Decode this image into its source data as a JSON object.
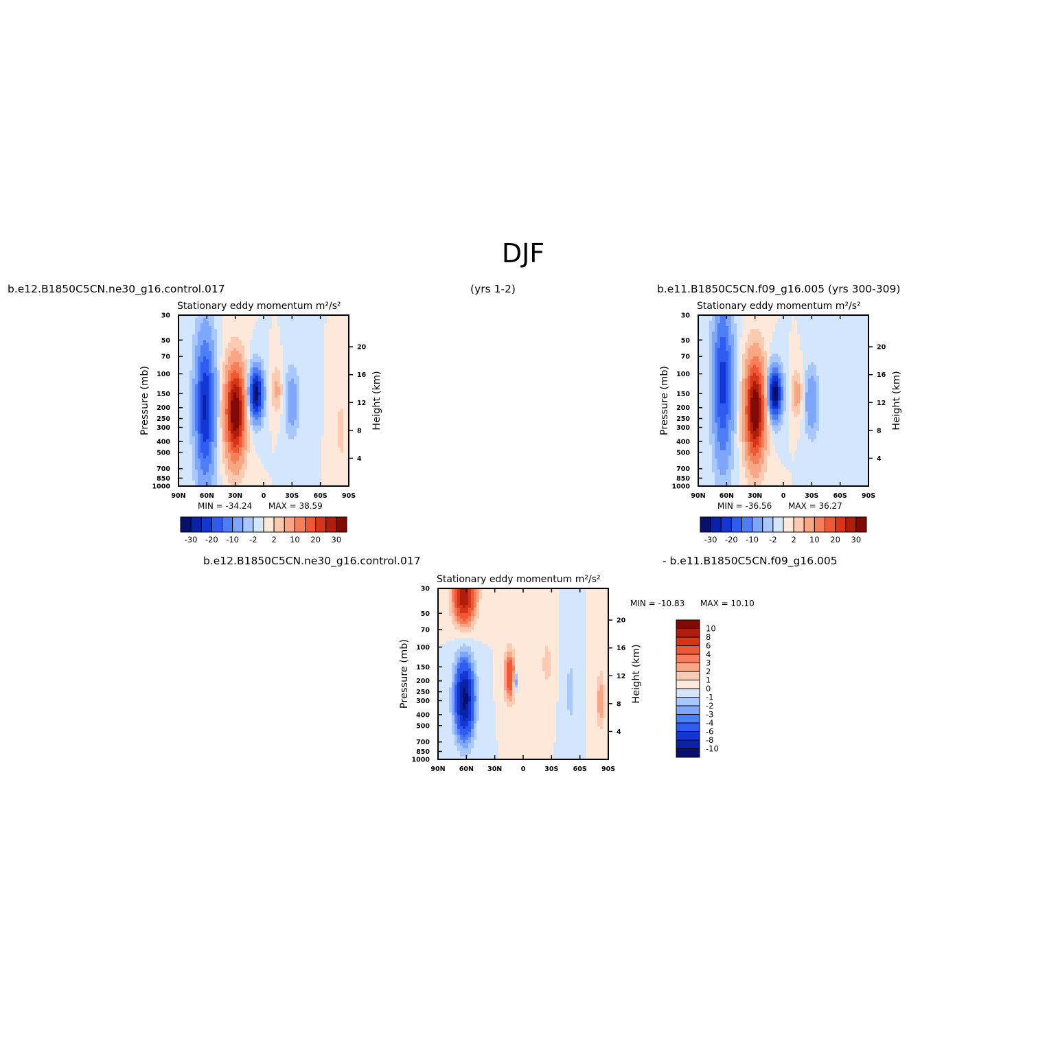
{
  "page_title": "DJF",
  "header": {
    "left_case": "b.e12.B1850C5CN.ne30_g16.control.017",
    "left_years": "(yrs 1-2)",
    "right_case": "b.e11.B1850C5CN.f09_g16.005 (yrs 300-309)",
    "diff_left": "b.e12.B1850C5CN.ne30_g16.control.017",
    "diff_right": "- b.e11.B1850C5CN.f09_g16.005"
  },
  "colors": {
    "full_scale": [
      "#08106e",
      "#0a22a8",
      "#1336d4",
      "#2e5cf0",
      "#4d7ef7",
      "#7ea6fb",
      "#a8c8fd",
      "#d4e6fe",
      "#fde8da",
      "#fccab1",
      "#f9a685",
      "#f67f5a",
      "#ee5834",
      "#d63518",
      "#b01d0c",
      "#820a05"
    ],
    "diff_scale": [
      "#08106e",
      "#0a22a8",
      "#1336d4",
      "#2e5cf0",
      "#4d7ef7",
      "#7ea6fb",
      "#a8c8fd",
      "#d4e6fe",
      "#fde8da",
      "#fccab1",
      "#f9a685",
      "#f67f5a",
      "#ee5834",
      "#d63518",
      "#b01d0c",
      "#820a05"
    ]
  },
  "chart_data": [
    {
      "type": "heatmap",
      "title": "Stationary eddy momentum",
      "units": "m²/s²",
      "ylabel": "Pressure (mb)",
      "y2label": "Height (km)",
      "x_ticks": [
        "90N",
        "60N",
        "30N",
        "0",
        "30S",
        "60S",
        "90S"
      ],
      "y_ticks": [
        "30",
        "50",
        "70",
        "100",
        "150",
        "200",
        "250",
        "300",
        "400",
        "500",
        "700",
        "850",
        "1000"
      ],
      "y2_ticks": [
        "20",
        "16",
        "12",
        "8",
        "4"
      ],
      "min_label": "MIN = -34.24",
      "max_label": "MAX = 38.59",
      "colorbar_labels": [
        "-30",
        "-20",
        "-10",
        "-2",
        "2",
        "10",
        "20",
        "30"
      ],
      "features": [
        {
          "lat": 62,
          "p": 200,
          "value": -26,
          "lat_width": 7,
          "p_spread": 1.0
        },
        {
          "lat": 30,
          "p": 220,
          "value": 36,
          "lat_width": 7,
          "p_spread": 0.65
        },
        {
          "lat": 8,
          "p": 150,
          "value": -33,
          "lat_width": 5,
          "p_spread": 0.35
        },
        {
          "lat": -14,
          "p": 140,
          "value": 6,
          "lat_width": 4,
          "p_spread": 0.3
        },
        {
          "lat": -30,
          "p": 180,
          "value": -9,
          "lat_width": 5,
          "p_spread": 0.45
        },
        {
          "lat": -82,
          "p": 320,
          "value": 4,
          "lat_width": 3,
          "p_spread": 0.4
        }
      ]
    },
    {
      "type": "heatmap",
      "title": "Stationary eddy momentum",
      "units": "m²/s²",
      "ylabel": "Pressure (mb)",
      "y2label": "Height (km)",
      "x_ticks": [
        "90N",
        "60N",
        "30N",
        "0",
        "30S",
        "60S",
        "90S"
      ],
      "y_ticks": [
        "30",
        "50",
        "70",
        "100",
        "150",
        "200",
        "250",
        "300",
        "400",
        "500",
        "700",
        "850",
        "1000"
      ],
      "y2_ticks": [
        "20",
        "16",
        "12",
        "8",
        "4"
      ],
      "min_label": "MIN = -36.56",
      "max_label": "MAX = 36.27",
      "colorbar_labels": [
        "-30",
        "-20",
        "-10",
        "-2",
        "2",
        "10",
        "20",
        "30"
      ],
      "features": [
        {
          "lat": 64,
          "p": 120,
          "value": -22,
          "lat_width": 7,
          "p_spread": 1.1
        },
        {
          "lat": 30,
          "p": 210,
          "value": 36,
          "lat_width": 7,
          "p_spread": 0.7
        },
        {
          "lat": 9,
          "p": 150,
          "value": -34,
          "lat_width": 5,
          "p_spread": 0.35
        },
        {
          "lat": -14,
          "p": 150,
          "value": 7,
          "lat_width": 4,
          "p_spread": 0.3
        },
        {
          "lat": -30,
          "p": 180,
          "value": -10,
          "lat_width": 5,
          "p_spread": 0.45
        }
      ]
    },
    {
      "type": "heatmap",
      "title": "Stationary eddy momentum",
      "units": "m²/s²",
      "ylabel": "Pressure (mb)",
      "y2label": "Height (km)",
      "x_ticks": [
        "90N",
        "60N",
        "30N",
        "0",
        "30S",
        "60S",
        "90S"
      ],
      "y_ticks": [
        "30",
        "50",
        "70",
        "100",
        "150",
        "200",
        "250",
        "300",
        "400",
        "500",
        "700",
        "850",
        "1000"
      ],
      "y2_ticks": [
        "20",
        "16",
        "12",
        "8",
        "4"
      ],
      "min_label": "MIN = -10.83",
      "max_label": "MAX = 10.10",
      "colorbar_labels": [
        "10",
        "8",
        "6",
        "4",
        "3",
        "2",
        "1",
        "0",
        "-1",
        "-2",
        "-3",
        "-4",
        "-6",
        "-8",
        "-10"
      ],
      "features": [
        {
          "lat": 62,
          "p": 290,
          "value": -10.8,
          "lat_width": 7,
          "p_spread": 0.55
        },
        {
          "lat": 62,
          "p": 34,
          "value": 10,
          "lat_width": 8,
          "p_spread": 0.4
        },
        {
          "lat": 14,
          "p": 180,
          "value": 6,
          "lat_width": 4,
          "p_spread": 0.35
        },
        {
          "lat": 8,
          "p": 200,
          "value": -4,
          "lat_width": 1.6,
          "p_spread": 0.15
        },
        {
          "lat": -25,
          "p": 140,
          "value": 2,
          "lat_width": 3,
          "p_spread": 0.3
        },
        {
          "lat": -50,
          "p": 250,
          "value": -2,
          "lat_width": 3,
          "p_spread": 0.4
        },
        {
          "lat": -82,
          "p": 300,
          "value": 3,
          "lat_width": 3,
          "p_spread": 0.4
        }
      ]
    }
  ]
}
